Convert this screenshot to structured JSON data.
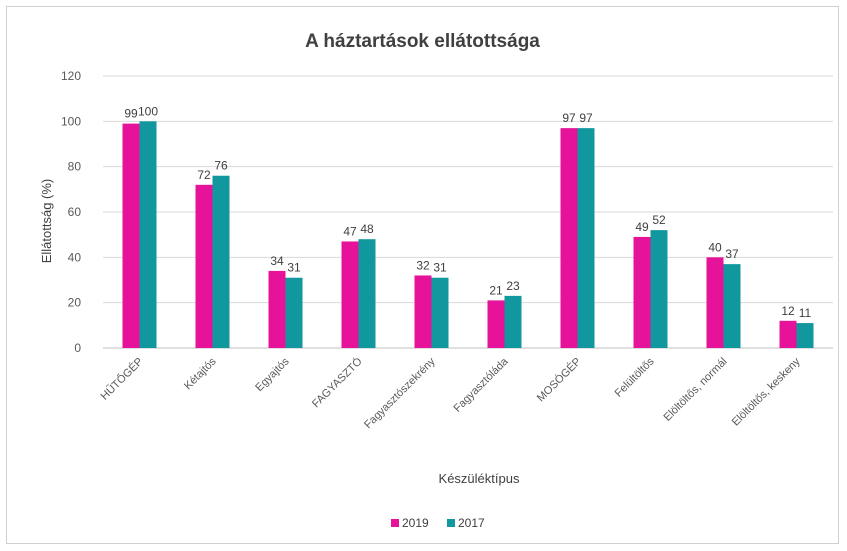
{
  "chart_data": {
    "type": "bar",
    "title": "A háztartások ellátottsága",
    "xlabel": "Készüléktípus",
    "ylabel": "Ellátottság (%)",
    "ylim": [
      0,
      120
    ],
    "yticks": [
      0,
      20,
      40,
      60,
      80,
      100,
      120
    ],
    "grid": true,
    "legend_position": "bottom",
    "categories": [
      "HŰTŐGÉP",
      "Kétajtós",
      "Egyajtós",
      "FAGYASZTÓ",
      "Fagyasztószekrény",
      "Fagyasztóláda",
      "MOSÓGÉP",
      "Felültöltős",
      "Elöltöltős, normál",
      "Elöltöltős, keskeny"
    ],
    "series": [
      {
        "name": "2019",
        "color": "#e6139a",
        "values": [
          99,
          72,
          34,
          47,
          32,
          21,
          97,
          49,
          40,
          12
        ]
      },
      {
        "name": "2017",
        "color": "#11979e",
        "values": [
          100,
          76,
          31,
          48,
          31,
          23,
          97,
          52,
          37,
          11
        ]
      }
    ]
  }
}
